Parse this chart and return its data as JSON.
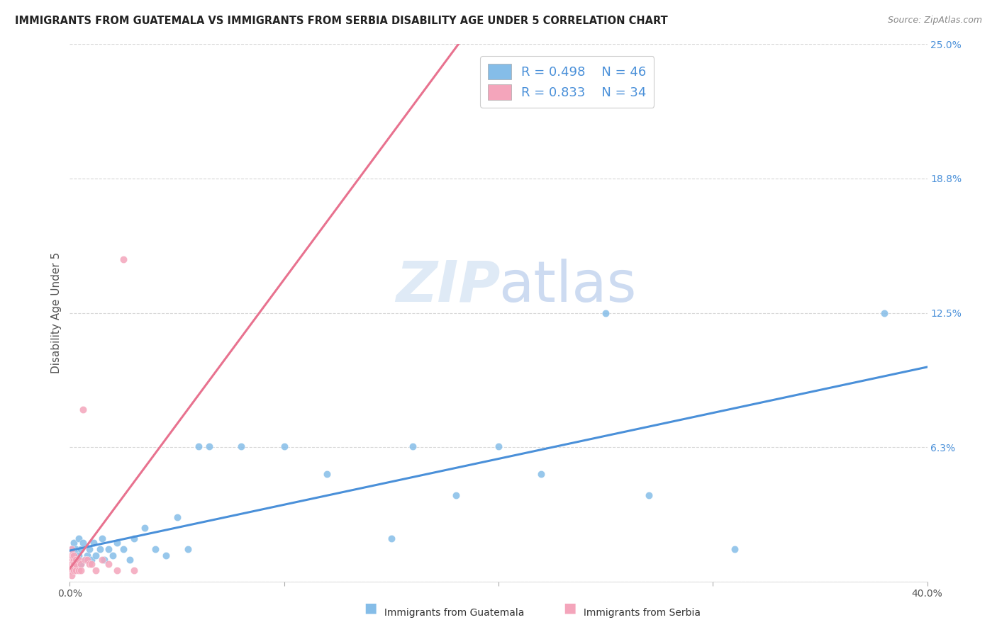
{
  "title": "IMMIGRANTS FROM GUATEMALA VS IMMIGRANTS FROM SERBIA DISABILITY AGE UNDER 5 CORRELATION CHART",
  "source": "Source: ZipAtlas.com",
  "ylabel": "Disability Age Under 5",
  "xlim": [
    0.0,
    0.4
  ],
  "ylim": [
    0.0,
    0.25
  ],
  "ytick_positions": [
    0.0,
    0.0625,
    0.125,
    0.1875,
    0.25
  ],
  "yticklabels_right": [
    "",
    "6.3%",
    "12.5%",
    "18.8%",
    "25.0%"
  ],
  "xtick_positions": [
    0.0,
    0.1,
    0.2,
    0.3,
    0.4
  ],
  "xticklabels": [
    "0.0%",
    "",
    "",
    "",
    "40.0%"
  ],
  "r_guatemala": 0.498,
  "n_guatemala": 46,
  "r_serbia": 0.833,
  "n_serbia": 34,
  "color_guatemala": "#85bde8",
  "color_serbia": "#f4a5bb",
  "line_color_guatemala": "#4a90d9",
  "line_color_serbia": "#e8728f",
  "dot_size": 55,
  "guatemala_x": [
    0.001,
    0.001,
    0.002,
    0.002,
    0.002,
    0.003,
    0.003,
    0.004,
    0.004,
    0.005,
    0.005,
    0.006,
    0.007,
    0.008,
    0.009,
    0.01,
    0.011,
    0.012,
    0.014,
    0.015,
    0.016,
    0.018,
    0.02,
    0.022,
    0.025,
    0.028,
    0.03,
    0.035,
    0.04,
    0.045,
    0.05,
    0.055,
    0.06,
    0.065,
    0.08,
    0.1,
    0.12,
    0.15,
    0.16,
    0.18,
    0.2,
    0.22,
    0.25,
    0.27,
    0.31,
    0.38
  ],
  "guatemala_y": [
    0.01,
    0.015,
    0.012,
    0.018,
    0.008,
    0.015,
    0.01,
    0.02,
    0.012,
    0.015,
    0.008,
    0.018,
    0.01,
    0.012,
    0.015,
    0.01,
    0.018,
    0.012,
    0.015,
    0.02,
    0.01,
    0.015,
    0.012,
    0.018,
    0.015,
    0.01,
    0.02,
    0.025,
    0.015,
    0.012,
    0.03,
    0.015,
    0.063,
    0.063,
    0.063,
    0.063,
    0.05,
    0.02,
    0.063,
    0.04,
    0.063,
    0.05,
    0.125,
    0.04,
    0.015,
    0.125
  ],
  "serbia_x": [
    0.0003,
    0.0005,
    0.0005,
    0.001,
    0.001,
    0.001,
    0.001,
    0.001,
    0.001,
    0.001,
    0.001,
    0.002,
    0.002,
    0.002,
    0.002,
    0.002,
    0.003,
    0.003,
    0.003,
    0.004,
    0.004,
    0.005,
    0.005,
    0.006,
    0.007,
    0.008,
    0.009,
    0.01,
    0.012,
    0.015,
    0.018,
    0.022,
    0.025,
    0.03
  ],
  "serbia_y": [
    0.005,
    0.008,
    0.01,
    0.005,
    0.008,
    0.01,
    0.012,
    0.015,
    0.005,
    0.008,
    0.003,
    0.008,
    0.01,
    0.005,
    0.012,
    0.008,
    0.005,
    0.01,
    0.008,
    0.005,
    0.01,
    0.008,
    0.005,
    0.08,
    0.01,
    0.01,
    0.008,
    0.008,
    0.005,
    0.01,
    0.008,
    0.005,
    0.15,
    0.005
  ],
  "watermark_zip_color": "#dce8f5",
  "watermark_atlas_color": "#c8d8f0",
  "grid_color": "#d8d8d8",
  "background_color": "#ffffff"
}
